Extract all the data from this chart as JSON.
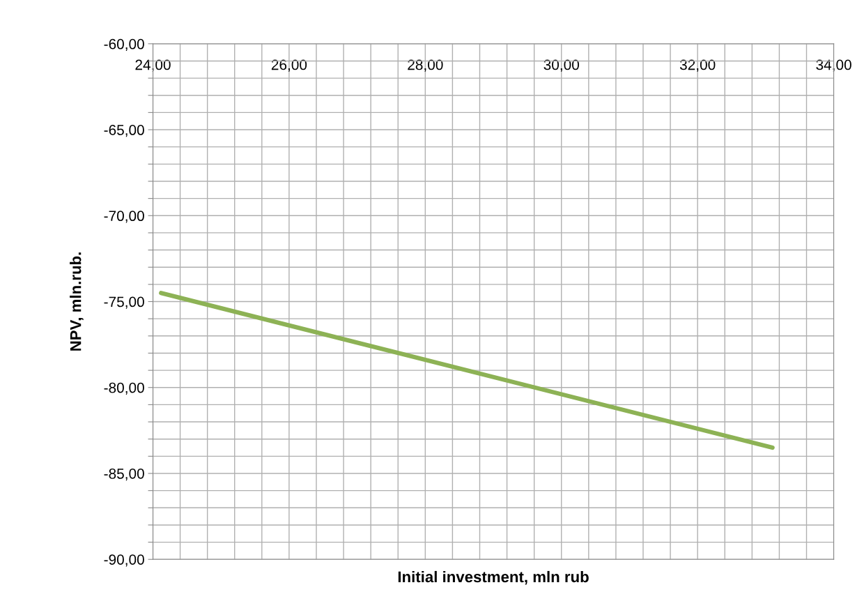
{
  "chart_data": {
    "type": "line",
    "xlabel": "Initial investment, mln rub",
    "ylabel": "NPV, mln.rub.",
    "x": [
      24.12,
      33.1
    ],
    "series": [
      {
        "color": "#8db255",
        "values": [
          -74.5,
          -83.5
        ]
      }
    ],
    "xlim": [
      24,
      34
    ],
    "ylim": [
      -90,
      -60
    ],
    "xticks": [
      {
        "value": 24,
        "label": "24,00"
      },
      {
        "value": 24.4,
        "label": null
      },
      {
        "value": 24.8,
        "label": null
      },
      {
        "value": 25.2,
        "label": null
      },
      {
        "value": 25.6,
        "label": null
      },
      {
        "value": 26,
        "label": "26,00"
      },
      {
        "value": 26.4,
        "label": null
      },
      {
        "value": 26.8,
        "label": null
      },
      {
        "value": 27.2,
        "label": null
      },
      {
        "value": 27.6,
        "label": null
      },
      {
        "value": 28,
        "label": "28,00"
      },
      {
        "value": 28.4,
        "label": null
      },
      {
        "value": 28.8,
        "label": null
      },
      {
        "value": 29.2,
        "label": null
      },
      {
        "value": 29.6,
        "label": null
      },
      {
        "value": 30,
        "label": "30,00"
      },
      {
        "value": 30.4,
        "label": null
      },
      {
        "value": 30.8,
        "label": null
      },
      {
        "value": 31.2,
        "label": null
      },
      {
        "value": 31.6,
        "label": null
      },
      {
        "value": 32,
        "label": "32,00"
      },
      {
        "value": 32.4,
        "label": null
      },
      {
        "value": 32.8,
        "label": null
      },
      {
        "value": 33.2,
        "label": null
      },
      {
        "value": 33.6,
        "label": null
      },
      {
        "value": 34,
        "label": "34,00"
      }
    ],
    "yticks": [
      {
        "value": -90,
        "label": "-90,00"
      },
      {
        "value": -89,
        "label": null
      },
      {
        "value": -88,
        "label": null
      },
      {
        "value": -87,
        "label": null
      },
      {
        "value": -86,
        "label": null
      },
      {
        "value": -85,
        "label": "-85,00"
      },
      {
        "value": -84,
        "label": null
      },
      {
        "value": -83,
        "label": null
      },
      {
        "value": -82,
        "label": null
      },
      {
        "value": -81,
        "label": null
      },
      {
        "value": -80,
        "label": "-80,00"
      },
      {
        "value": -79,
        "label": null
      },
      {
        "value": -78,
        "label": null
      },
      {
        "value": -77,
        "label": null
      },
      {
        "value": -76,
        "label": null
      },
      {
        "value": -75,
        "label": "-75,00"
      },
      {
        "value": -74,
        "label": null
      },
      {
        "value": -73,
        "label": null
      },
      {
        "value": -72,
        "label": null
      },
      {
        "value": -71,
        "label": null
      },
      {
        "value": -70,
        "label": "-70,00"
      },
      {
        "value": -69,
        "label": null
      },
      {
        "value": -68,
        "label": null
      },
      {
        "value": -67,
        "label": null
      },
      {
        "value": -66,
        "label": null
      },
      {
        "value": -65,
        "label": "-65,00"
      },
      {
        "value": -64,
        "label": null
      },
      {
        "value": -63,
        "label": null
      },
      {
        "value": -62,
        "label": null
      },
      {
        "value": -61,
        "label": null
      },
      {
        "value": -60,
        "label": "-60,00"
      }
    ],
    "grid": true,
    "marker": "none",
    "line_style": "solid"
  }
}
